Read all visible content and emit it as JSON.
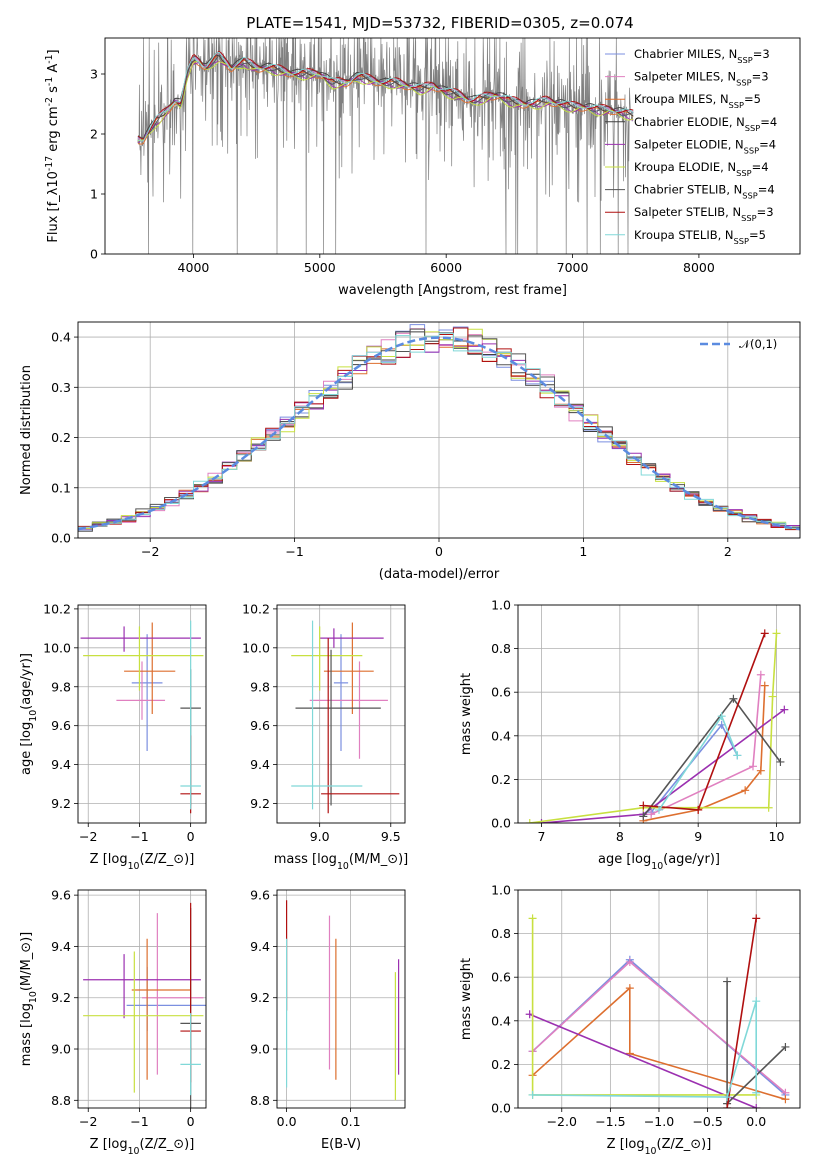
{
  "figure": {
    "title": "PLATE=1541, MJD=53732, FIBERID=0305, z=0.074"
  },
  "models": [
    {
      "label": "Chabrier MILES, N$_{SSP}$=3",
      "color": "#7b8fe0"
    },
    {
      "label": "Salpeter MILES, N$_{SSP}$=3",
      "color": "#e080c0"
    },
    {
      "label": "Kroupa MILES, N$_{SSP}$=5",
      "color": "#dd6f2f"
    },
    {
      "label": "Chabrier ELODIE, N$_{SSP}$=4",
      "color": "#404040"
    },
    {
      "label": "Salpeter ELODIE, N$_{SSP}$=4",
      "color": "#9b30b0"
    },
    {
      "label": "Kroupa ELODIE, N$_{SSP}$=4",
      "color": "#c8e040"
    },
    {
      "label": "Chabrier STELIB, N$_{SSP}$=4",
      "color": "#555555"
    },
    {
      "label": "Salpeter STELIB, N$_{SSP}$=3",
      "color": "#b01010"
    },
    {
      "label": "Kroupa STELIB, N$_{SSP}$=5",
      "color": "#80d8d8"
    }
  ],
  "chart_data": [
    {
      "id": "spectrum",
      "type": "line",
      "title": "PLATE=1541, MJD=53732, FIBERID=0305, z=0.074",
      "xlabel": "wavelength [Angstrom, rest frame]",
      "ylabel": "Flux [f$_\\lambda$10$^{-17}$ erg cm$^{-2}$ s$^{-1}$ A$^{-1}$]",
      "xlim": [
        3300,
        8800
      ],
      "ylim": [
        0,
        3.6
      ],
      "xticks": [
        4000,
        5000,
        6000,
        7000,
        8000
      ],
      "yticks": [
        0,
        1,
        2,
        3
      ],
      "grid": false,
      "legend": "upper right",
      "data_color": "#808080",
      "model_x": [
        3600,
        3700,
        3800,
        3850,
        3900,
        3950,
        4000,
        4050,
        4100,
        4150,
        4200,
        4300,
        4400,
        4500,
        4600,
        4700,
        4800,
        4900,
        5000,
        5100,
        5200,
        5300,
        5400,
        5500,
        5600,
        5700,
        5800,
        5900,
        6000,
        6100,
        6200,
        6300,
        6400,
        6500,
        6600,
        6700,
        6800,
        6900,
        7000,
        7100,
        7200,
        7300,
        7400,
        7500
      ],
      "model_y": [
        1.9,
        2.2,
        2.4,
        2.55,
        2.5,
        3.0,
        3.25,
        3.2,
        3.1,
        3.2,
        3.3,
        3.1,
        3.2,
        3.1,
        3.1,
        3.05,
        3.0,
        3.0,
        3.0,
        2.85,
        2.85,
        2.95,
        2.9,
        2.85,
        2.85,
        2.8,
        2.75,
        2.8,
        2.7,
        2.65,
        2.55,
        2.6,
        2.65,
        2.55,
        2.5,
        2.5,
        2.55,
        2.5,
        2.45,
        2.45,
        2.4,
        2.4,
        2.35,
        2.3
      ],
      "model_offsets": [
        0.0,
        0.02,
        -0.02,
        0.03,
        -0.03,
        -0.05,
        0.01,
        0.04,
        0.03
      ]
    },
    {
      "id": "residuals",
      "type": "line",
      "xlabel": "(data-model)/error",
      "ylabel": "Normed distribution",
      "xlim": [
        -2.5,
        2.5
      ],
      "ylim": [
        0,
        0.43
      ],
      "xticks": [
        -2,
        -1,
        0,
        1,
        2
      ],
      "yticks": [
        0.0,
        0.1,
        0.2,
        0.3,
        0.4
      ],
      "grid": true,
      "legend": "upper right",
      "gauss_label": "$\\mathcal{N}(0,1)$",
      "gauss_color": "#5b8be0",
      "bin_width": 0.1
    },
    {
      "id": "age-vs-Z",
      "type": "scatter",
      "xlabel": "Z [log$_{10}$($Z/Z_\\odot$)]",
      "ylabel": "age  [log$_{10}$($age/yr$)]",
      "xlim": [
        -2.2,
        0.3
      ],
      "ylim": [
        9.1,
        10.22
      ],
      "xticks": [
        -2,
        -1,
        0
      ],
      "yticks": [
        9.2,
        9.4,
        9.6,
        9.8,
        10.0,
        10.2
      ],
      "grid": true,
      "errorbars": [
        {
          "model": 0,
          "x": -0.85,
          "xerr": [
            0.3,
            0.3
          ],
          "y": 9.82,
          "yerr": [
            0.35,
            0.25
          ]
        },
        {
          "model": 1,
          "x": -0.95,
          "xerr": [
            0.5,
            0.45
          ],
          "y": 9.73,
          "yerr": [
            0.1,
            0.2
          ]
        },
        {
          "model": 2,
          "x": -0.75,
          "xerr": [
            0.55,
            0.45
          ],
          "y": 9.88,
          "yerr": [
            0.22,
            0.25
          ]
        },
        {
          "model": 4,
          "x": -1.3,
          "xerr": [
            0.85,
            1.5
          ],
          "y": 10.05,
          "yerr": [
            0.07,
            0.06
          ]
        },
        {
          "model": 5,
          "x": -1.0,
          "xerr": [
            1.1,
            1.25
          ],
          "y": 9.96,
          "yerr": [
            0.18,
            0.15
          ]
        },
        {
          "model": 6,
          "x": 0.0,
          "xerr": [
            0.2,
            0.2
          ],
          "y": 9.69,
          "yerr": [
            0.5,
            0.2
          ]
        },
        {
          "model": 7,
          "x": 0.0,
          "xerr": [
            0.2,
            0.2
          ],
          "y": 9.25,
          "yerr": [
            0.1,
            0.3
          ]
        },
        {
          "model": 8,
          "x": 0.0,
          "xerr": [
            0.2,
            0.2
          ],
          "y": 9.29,
          "yerr": [
            0.12,
            0.85
          ]
        }
      ]
    },
    {
      "id": "age-vs-mass",
      "type": "scatter",
      "xlabel": "mass [log$_{10}$($M/M_\\odot$)]",
      "ylabel": "",
      "xlim": [
        8.7,
        9.6
      ],
      "ylim": [
        9.1,
        10.22
      ],
      "xticks": [
        9.0,
        9.5
      ],
      "yticks": [
        9.2,
        9.4,
        9.6,
        9.8,
        10.0,
        10.2
      ],
      "grid": true,
      "errorbars": [
        {
          "model": 0,
          "x": 9.15,
          "xerr": [
            0.05,
            0.05
          ],
          "y": 9.82,
          "yerr": [
            0.35,
            0.25
          ]
        },
        {
          "model": 1,
          "x": 9.28,
          "xerr": [
            0.35,
            0.2
          ],
          "y": 9.73,
          "yerr": [
            0.3,
            0.2
          ]
        },
        {
          "model": 2,
          "x": 9.23,
          "xerr": [
            0.2,
            0.15
          ],
          "y": 9.88,
          "yerr": [
            0.22,
            0.25
          ]
        },
        {
          "model": 4,
          "x": 9.1,
          "xerr": [
            0.1,
            0.35
          ],
          "y": 10.05,
          "yerr": [
            0.05,
            0.05
          ]
        },
        {
          "model": 5,
          "x": 9.0,
          "xerr": [
            0.2,
            0.3
          ],
          "y": 9.96,
          "yerr": [
            0.18,
            0.15
          ]
        },
        {
          "model": 6,
          "x": 9.08,
          "xerr": [
            0.25,
            0.35
          ],
          "y": 9.69,
          "yerr": [
            0.5,
            0.3
          ]
        },
        {
          "model": 7,
          "x": 9.06,
          "xerr": [
            0.05,
            0.5
          ],
          "y": 9.25,
          "yerr": [
            0.1,
            0.8
          ]
        },
        {
          "model": 8,
          "x": 8.95,
          "xerr": [
            0.15,
            0.35
          ],
          "y": 9.29,
          "yerr": [
            0.12,
            0.85
          ]
        }
      ]
    },
    {
      "id": "mass-weight-vs-age",
      "type": "line",
      "xlabel": "age  [log$_{10}$($age/yr$)]",
      "ylabel": "mass weight",
      "xlim": [
        6.7,
        10.3
      ],
      "ylim": [
        0,
        1.0
      ],
      "xticks": [
        7,
        8,
        9,
        10
      ],
      "yticks": [
        0.0,
        0.2,
        0.4,
        0.6,
        0.8,
        1.0
      ],
      "grid": true,
      "series": [
        {
          "model": 0,
          "x": [
            8.4,
            9.3,
            9.5
          ],
          "y": [
            0.05,
            0.45,
            0.31
          ]
        },
        {
          "model": 1,
          "x": [
            8.4,
            9.7,
            9.8
          ],
          "y": [
            0.04,
            0.26,
            0.68
          ]
        },
        {
          "model": 2,
          "x": [
            8.3,
            9.0,
            9.6,
            9.8,
            9.85
          ],
          "y": [
            0.01,
            0.06,
            0.15,
            0.24,
            0.63
          ]
        },
        {
          "model": 4,
          "x": [
            7.0,
            8.3,
            10.1
          ],
          "y": [
            0.0,
            0.04,
            0.52
          ]
        },
        {
          "model": 5,
          "x": [
            6.85,
            8.3,
            9.9,
            9.95,
            10.0
          ],
          "y": [
            0.0,
            0.07,
            0.07,
            0.58,
            0.87
          ]
        },
        {
          "model": 6,
          "x": [
            8.3,
            9.45,
            10.05
          ],
          "y": [
            0.03,
            0.57,
            0.28
          ]
        },
        {
          "model": 7,
          "x": [
            8.3,
            9.0,
            9.85
          ],
          "y": [
            0.08,
            0.06,
            0.87
          ]
        },
        {
          "model": 8,
          "x": [
            8.5,
            9.3,
            9.5
          ],
          "y": [
            0.06,
            0.49,
            0.31
          ]
        }
      ]
    },
    {
      "id": "mass-vs-Z",
      "type": "scatter",
      "xlabel": "Z [log$_{10}$($Z/Z_\\odot$)]",
      "ylabel": "mass [log$_{10}$($M/M_\\odot$)]",
      "xlim": [
        -2.2,
        0.3
      ],
      "ylim": [
        8.77,
        9.62
      ],
      "xticks": [
        -2,
        -1,
        0
      ],
      "yticks": [
        8.8,
        9.0,
        9.2,
        9.4,
        9.6
      ],
      "grid": true,
      "errorbars": [
        {
          "model": 0,
          "x": -0.85,
          "xerr": [
            0.4,
            1.15
          ],
          "y": 9.17,
          "yerr": [
            0.1,
            0.15
          ]
        },
        {
          "model": 1,
          "x": -0.65,
          "xerr": [
            0.3,
            0.9
          ],
          "y": 9.2,
          "yerr": [
            0.3,
            0.33
          ]
        },
        {
          "model": 2,
          "x": -0.85,
          "xerr": [
            0.3,
            0.85
          ],
          "y": 9.23,
          "yerr": [
            0.35,
            0.2
          ]
        },
        {
          "model": 4,
          "x": -1.3,
          "xerr": [
            0.8,
            1.5
          ],
          "y": 9.27,
          "yerr": [
            0.15,
            0.1
          ]
        },
        {
          "model": 5,
          "x": -1.1,
          "xerr": [
            1.0,
            1.35
          ],
          "y": 9.13,
          "yerr": [
            0.3,
            0.25
          ]
        },
        {
          "model": 6,
          "x": 0.0,
          "xerr": [
            0.2,
            0.2
          ],
          "y": 9.1,
          "yerr": [
            0.35,
            0.45
          ]
        },
        {
          "model": 7,
          "x": 0.0,
          "xerr": [
            0.2,
            0.2
          ],
          "y": 9.07,
          "yerr": [
            0.2,
            0.5
          ]
        },
        {
          "model": 8,
          "x": 0.0,
          "xerr": [
            0.2,
            0.2
          ],
          "y": 8.94,
          "yerr": [
            0.12,
            0.2
          ]
        }
      ]
    },
    {
      "id": "mass-vs-EBV",
      "type": "scatter",
      "xlabel": "E(B-V)",
      "ylabel": "",
      "xlim": [
        -0.015,
        0.185
      ],
      "ylim": [
        8.77,
        9.62
      ],
      "xticks": [
        0.0,
        0.1
      ],
      "yticks": [
        8.8,
        9.0,
        9.2,
        9.4,
        9.6
      ],
      "grid": true,
      "errorbars": [
        {
          "model": 7,
          "x": 0.0,
          "y": 9.45,
          "yerr": [
            0.3,
            0.13
          ]
        },
        {
          "model": 8,
          "x": 0.0,
          "y": 9.13,
          "yerr": [
            0.28,
            0.3
          ]
        },
        {
          "model": 1,
          "x": 0.067,
          "y": 9.17,
          "yerr": [
            0.25,
            0.35
          ]
        },
        {
          "model": 2,
          "x": 0.077,
          "y": 9.18,
          "yerr": [
            0.3,
            0.25
          ]
        },
        {
          "model": 5,
          "x": 0.17,
          "y": 9.05,
          "yerr": [
            0.25,
            0.25
          ]
        },
        {
          "model": 4,
          "x": 0.175,
          "y": 9.1,
          "yerr": [
            0.2,
            0.25
          ]
        }
      ]
    },
    {
      "id": "mass-weight-vs-Z",
      "type": "line",
      "xlabel": "Z [log$_{10}$($Z/Z_\\odot$)]",
      "ylabel": "mass weight",
      "xlim": [
        -2.45,
        0.45
      ],
      "ylim": [
        0,
        1.0
      ],
      "xticks": [
        -2.0,
        -1.5,
        -1.0,
        -0.5,
        0.0
      ],
      "yticks": [
        0.0,
        0.2,
        0.4,
        0.6,
        0.8,
        1.0
      ],
      "grid": true,
      "series": [
        {
          "model": 0,
          "x": [
            -2.3,
            -1.3,
            0.3
          ],
          "y": [
            0.26,
            0.68,
            0.06
          ]
        },
        {
          "model": 1,
          "x": [
            -2.3,
            -1.3,
            0.3
          ],
          "y": [
            0.26,
            0.67,
            0.07
          ]
        },
        {
          "model": 2,
          "x": [
            -2.3,
            -1.3,
            -1.3,
            0.3
          ],
          "y": [
            0.15,
            0.55,
            0.25,
            0.04
          ]
        },
        {
          "model": 4,
          "x": [
            -2.33,
            0.0
          ],
          "y": [
            0.43,
            0.0
          ]
        },
        {
          "model": 5,
          "x": [
            -2.3,
            -2.3,
            0.0
          ],
          "y": [
            0.87,
            0.06,
            0.06
          ]
        },
        {
          "model": 6,
          "x": [
            -0.3,
            -0.3,
            0.3
          ],
          "y": [
            0.58,
            0.02,
            0.28
          ]
        },
        {
          "model": 7,
          "x": [
            -0.3,
            0.0
          ],
          "y": [
            0.0,
            0.87
          ]
        },
        {
          "model": 8,
          "x": [
            -2.3,
            -0.3,
            0.0,
            0.0
          ],
          "y": [
            0.06,
            0.05,
            0.49,
            0.07
          ]
        }
      ]
    }
  ]
}
